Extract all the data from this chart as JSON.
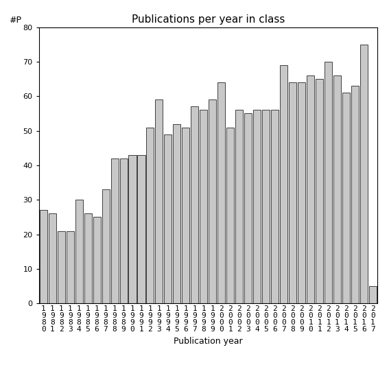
{
  "title": "Publications per year in class",
  "xlabel": "Publication year",
  "ylabel": "#P",
  "bar_color": "#c8c8c8",
  "edge_color": "#000000",
  "background_color": "#ffffff",
  "ylim": [
    0,
    80
  ],
  "yticks": [
    0,
    10,
    20,
    30,
    40,
    50,
    60,
    70,
    80
  ],
  "years": [
    1980,
    1981,
    1982,
    1983,
    1984,
    1985,
    1986,
    1987,
    1988,
    1989,
    1990,
    1991,
    1992,
    1993,
    1994,
    1995,
    1996,
    1997,
    1998,
    1999,
    2000,
    2001,
    2002,
    2003,
    2004,
    2005,
    2006,
    2007,
    2008,
    2009,
    2010,
    2011,
    2012,
    2013,
    2014,
    2015,
    2016,
    2017
  ],
  "values": [
    27,
    26,
    21,
    21,
    30,
    26,
    25,
    33,
    42,
    42,
    43,
    43,
    51,
    59,
    49,
    52,
    51,
    57,
    56,
    59,
    64,
    51,
    56,
    55,
    56,
    56,
    56,
    69,
    64,
    64,
    66,
    65,
    70,
    66,
    61,
    63,
    75,
    5
  ],
  "title_fontsize": 11,
  "label_fontsize": 9,
  "tick_fontsize": 8
}
